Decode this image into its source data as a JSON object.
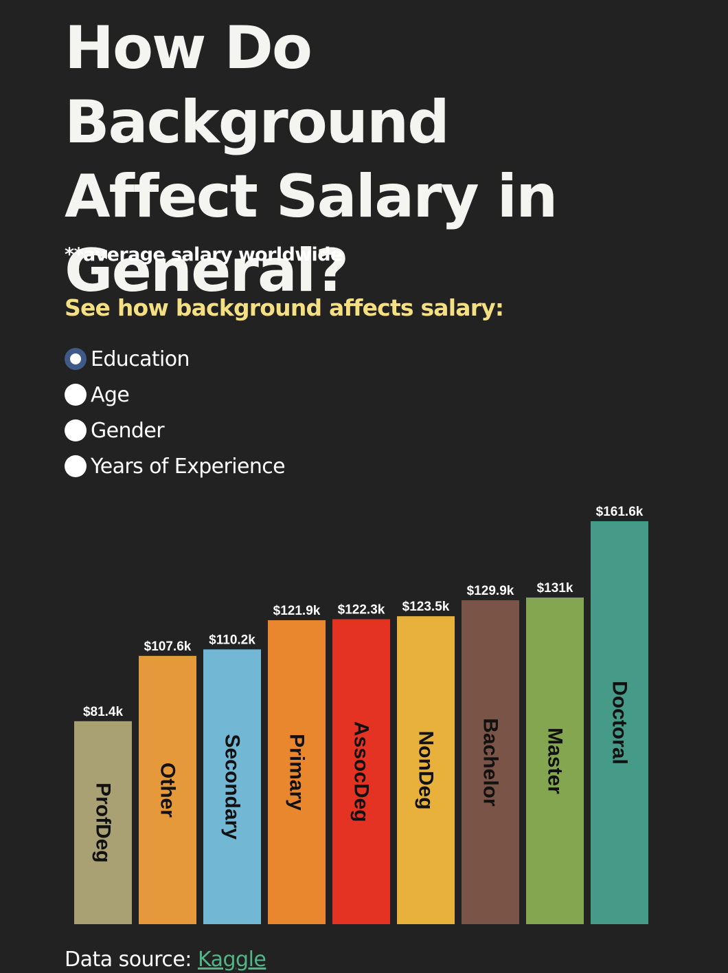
{
  "title": "How Do Background\nAffect Salary in\nGeneral?",
  "subtitle": "**average salary worldwide",
  "prompt": "See how background affects salary:",
  "options": [
    {
      "label": "Education",
      "checked": true
    },
    {
      "label": "Age",
      "checked": false
    },
    {
      "label": "Gender",
      "checked": false
    },
    {
      "label": "Years of Experience",
      "checked": false
    }
  ],
  "source": {
    "prefix": "Data source:",
    "link_text": "Kaggle"
  },
  "chart_data": {
    "type": "bar",
    "categories": [
      "ProfDeg",
      "Other",
      "Secondary",
      "Primary",
      "AssocDeg",
      "NonDeg",
      "Bachelor",
      "Master",
      "Doctoral"
    ],
    "values": [
      81.4,
      107.6,
      110.2,
      121.9,
      122.3,
      123.5,
      129.9,
      131,
      161.6
    ],
    "value_labels": [
      "$81.4k",
      "$107.6k",
      "$110.2k",
      "$121.9k",
      "$122.3k",
      "$123.5k",
      "$129.9k",
      "$131k",
      "$161.6k"
    ],
    "colors": [
      "#a9a074",
      "#e6993a",
      "#72b7d4",
      "#e8872e",
      "#e53323",
      "#e8b13c",
      "#7a5446",
      "#84a650",
      "#459a88"
    ],
    "ylim": [
      0,
      161.6
    ],
    "grid": false,
    "legend": false
  }
}
